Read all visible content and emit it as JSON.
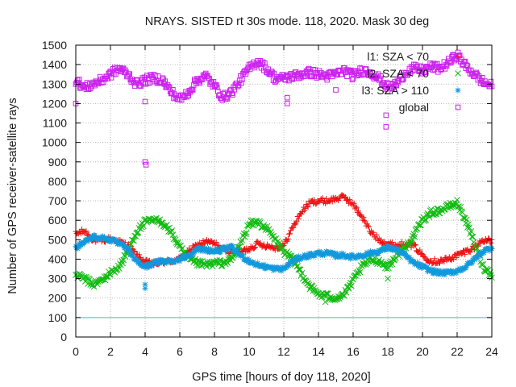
{
  "chart_data": {
    "type": "scatter",
    "title": "NRAYS. SISTED rt 30s mode. 118, 2020. Mask 30 deg",
    "xlabel": "GPS time [hours of doy 118, 2020]",
    "ylabel": "Number of GPS receiver-satellite rays",
    "xlim": [
      0,
      24
    ],
    "ylim": [
      0,
      1500
    ],
    "xticks": [
      "0",
      "2",
      "4",
      "6",
      "8",
      "10",
      "12",
      "14",
      "16",
      "18",
      "20",
      "22",
      "24"
    ],
    "yticks": [
      "0",
      "100",
      "200",
      "300",
      "400",
      "500",
      "600",
      "700",
      "800",
      "900",
      "1000",
      "1100",
      "1200",
      "1300",
      "1400",
      "1500"
    ],
    "grid": true,
    "legend_position": "top-right",
    "reference_line": {
      "y": 100,
      "color": "#22cccc"
    },
    "series": [
      {
        "name": "l1: SZA < 70",
        "color": "#ee1111",
        "marker": "plus",
        "x": [
          0,
          0.5,
          1,
          1.5,
          2,
          2.5,
          3,
          3.5,
          4,
          4.5,
          5,
          5.5,
          6,
          6.5,
          7,
          7.5,
          8,
          8.5,
          9,
          9.5,
          10,
          10.5,
          11,
          11.5,
          12,
          12.5,
          13,
          13.5,
          14,
          14.5,
          15,
          15.5,
          16,
          16.5,
          17,
          17.5,
          18,
          18.5,
          19,
          19.5,
          20,
          20.5,
          21,
          21.5,
          22,
          22.5,
          23,
          23.5,
          24
        ],
        "y": [
          530,
          545,
          500,
          495,
          505,
          490,
          470,
          420,
          385,
          375,
          385,
          390,
          400,
          440,
          470,
          490,
          480,
          450,
          440,
          435,
          455,
          480,
          470,
          460,
          470,
          560,
          640,
          690,
          700,
          700,
          710,
          720,
          680,
          620,
          540,
          500,
          480,
          470,
          480,
          470,
          420,
          390,
          390,
          400,
          420,
          440,
          460,
          500,
          490
        ]
      },
      {
        "name": "l2: SZA < 70",
        "color": "#11bb11",
        "marker": "cross",
        "x": [
          0,
          0.5,
          1,
          1.5,
          2,
          2.5,
          3,
          3.5,
          4,
          4.5,
          5,
          5.5,
          6,
          6.5,
          7,
          7.5,
          8,
          8.5,
          9,
          9.5,
          10,
          10.5,
          11,
          11.5,
          12,
          12.5,
          13,
          13.5,
          14,
          14.5,
          15,
          15.5,
          16,
          16.5,
          17,
          17.5,
          18,
          18.5,
          19,
          19.5,
          20,
          20.5,
          21,
          21.5,
          22,
          22.5,
          23,
          23.5,
          24
        ],
        "y": [
          320,
          300,
          270,
          290,
          330,
          360,
          440,
          540,
          590,
          600,
          590,
          540,
          460,
          400,
          380,
          370,
          380,
          380,
          400,
          480,
          580,
          590,
          560,
          500,
          440,
          400,
          330,
          260,
          220,
          210,
          200,
          220,
          290,
          360,
          400,
          390,
          360,
          420,
          460,
          520,
          600,
          640,
          650,
          670,
          690,
          600,
          480,
          360,
          320
        ]
      },
      {
        "name": "l3: SZA > 110",
        "color": "#1199dd",
        "marker": "star",
        "x": [
          0,
          0.5,
          1,
          1.5,
          2,
          2.5,
          3,
          3.5,
          4,
          4.5,
          5,
          5.5,
          6,
          6.5,
          7,
          7.5,
          8,
          8.5,
          9,
          9.5,
          10,
          10.5,
          11,
          11.5,
          12,
          12.5,
          13,
          13.5,
          14,
          14.5,
          15,
          15.5,
          16,
          16.5,
          17,
          17.5,
          18,
          18.5,
          19,
          19.5,
          20,
          20.5,
          21,
          21.5,
          22,
          22.5,
          23,
          23.5,
          24
        ],
        "y": [
          460,
          490,
          515,
          510,
          500,
          480,
          450,
          390,
          360,
          380,
          390,
          390,
          400,
          420,
          450,
          450,
          440,
          450,
          460,
          420,
          390,
          370,
          360,
          350,
          350,
          390,
          410,
          420,
          430,
          430,
          420,
          420,
          410,
          420,
          430,
          440,
          460,
          450,
          420,
          380,
          360,
          340,
          330,
          330,
          340,
          360,
          400,
          440,
          460
        ]
      },
      {
        "name": "global",
        "color": "#cc22ee",
        "marker": "square",
        "x": [
          0,
          0.5,
          1,
          1.5,
          2,
          2.5,
          3,
          3.5,
          4,
          4.5,
          5,
          5.5,
          6,
          6.5,
          7,
          7.5,
          8,
          8.5,
          9,
          9.5,
          10,
          10.5,
          11,
          11.5,
          12,
          12.5,
          13,
          13.5,
          14,
          14.5,
          15,
          15.5,
          16,
          16.5,
          17,
          17.5,
          18,
          18.5,
          19,
          19.5,
          20,
          20.5,
          21,
          21.5,
          22,
          22.5,
          23,
          23.5,
          24
        ],
        "y": [
          1320,
          1280,
          1300,
          1320,
          1350,
          1380,
          1350,
          1300,
          1320,
          1330,
          1320,
          1260,
          1220,
          1260,
          1320,
          1340,
          1290,
          1230,
          1260,
          1320,
          1380,
          1420,
          1380,
          1330,
          1330,
          1340,
          1350,
          1360,
          1350,
          1340,
          1350,
          1370,
          1340,
          1370,
          1360,
          1330,
          1280,
          1300,
          1360,
          1380,
          1370,
          1390,
          1380,
          1410,
          1450,
          1390,
          1350,
          1310,
          1290
        ]
      }
    ],
    "outliers": [
      {
        "series": "global",
        "x": 0,
        "y": 1200
      },
      {
        "series": "global",
        "x": 4,
        "y": 1210
      },
      {
        "series": "global",
        "x": 4,
        "y": 900
      },
      {
        "series": "global",
        "x": 4.05,
        "y": 885
      },
      {
        "series": "global",
        "x": 12.2,
        "y": 1230
      },
      {
        "series": "global",
        "x": 12.2,
        "y": 1200
      },
      {
        "series": "global",
        "x": 15,
        "y": 1270
      },
      {
        "series": "global",
        "x": 17.9,
        "y": 1140
      },
      {
        "series": "global",
        "x": 17.9,
        "y": 1080
      },
      {
        "series": "l3: SZA > 110",
        "x": 4,
        "y": 250
      },
      {
        "series": "l3: SZA > 110",
        "x": 4,
        "y": 270
      },
      {
        "series": "l2: SZA < 70",
        "x": 14.4,
        "y": 180
      },
      {
        "series": "l2: SZA < 70",
        "x": 18,
        "y": 300
      }
    ]
  }
}
